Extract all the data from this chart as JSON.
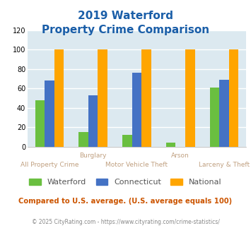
{
  "title_line1": "2019 Waterford",
  "title_line2": "Property Crime Comparison",
  "categories": [
    "All Property Crime",
    "Burglary",
    "Motor Vehicle Theft",
    "Arson",
    "Larceny & Theft"
  ],
  "top_labels": [
    "",
    "Burglary",
    "",
    "Arson",
    ""
  ],
  "bottom_labels": [
    "All Property Crime",
    "",
    "Motor Vehicle Theft",
    "",
    "Larceny & Theft"
  ],
  "series": {
    "Waterford": [
      48,
      15,
      12,
      4,
      61
    ],
    "Connecticut": [
      68,
      53,
      76,
      0,
      69
    ],
    "National": [
      100,
      100,
      100,
      100,
      100
    ]
  },
  "colors": {
    "Waterford": "#6abf40",
    "Connecticut": "#4472c4",
    "National": "#ffa500"
  },
  "ylim": [
    0,
    120
  ],
  "yticks": [
    0,
    20,
    40,
    60,
    80,
    100,
    120
  ],
  "bar_width": 0.22,
  "plot_bg_color": "#dce9f0",
  "grid_color": "#ffffff",
  "title_color": "#1a5ea8",
  "xlabel_top_color": "#c0a080",
  "xlabel_bot_color": "#c0a080",
  "legend_label_color": "#555555",
  "footer_text": "Compared to U.S. average. (U.S. average equals 100)",
  "copyright_text": "© 2025 CityRating.com - https://www.cityrating.com/crime-statistics/",
  "footer_color": "#cc5500",
  "copyright_color": "#888888"
}
